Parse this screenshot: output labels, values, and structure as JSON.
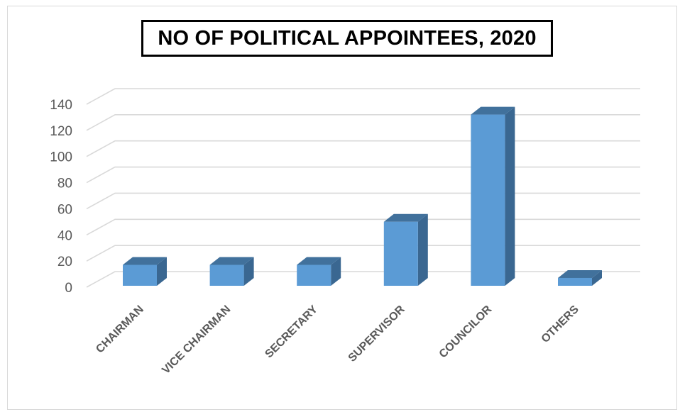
{
  "chart_data": {
    "type": "bar",
    "title": "NO OF POLITICAL APPOINTEES, 2020",
    "categories": [
      "CHAIRMAN",
      "VICE CHAIRMAN",
      "SECRETARY",
      "SUPERVISOR",
      "COUNCILOR",
      "OTHERS"
    ],
    "values": [
      16,
      16,
      16,
      49,
      131,
      6
    ],
    "ylim": [
      0,
      140
    ],
    "yticks": [
      "0",
      "20",
      "40",
      "60",
      "80",
      "100",
      "120",
      "140"
    ],
    "xlabel": "",
    "ylabel": "",
    "grid": true,
    "legend": "none",
    "style": "3d-column",
    "colors": {
      "bar_front": "#5b9bd5",
      "bar_top": "#41719c",
      "bar_side": "#3a6791",
      "gridline": "#d9d9d9",
      "axis_text": "#595959"
    }
  }
}
